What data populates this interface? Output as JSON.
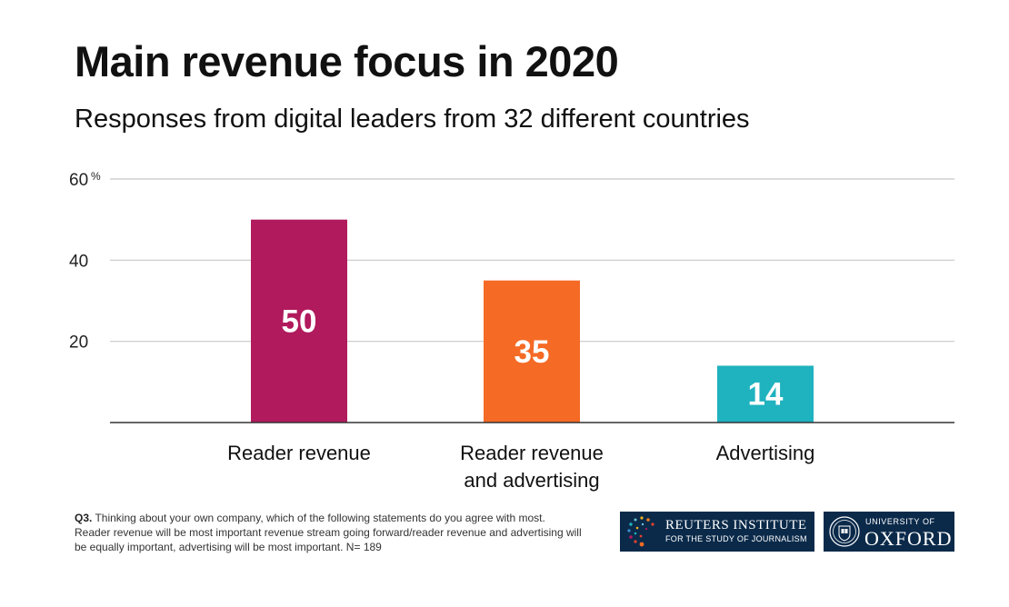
{
  "header": {
    "title": "Main revenue focus in 2020",
    "subtitle": "Responses from digital leaders from 32 different countries"
  },
  "chart_data": {
    "type": "bar",
    "title": "Main revenue focus in 2020",
    "subtitle": "Responses from digital leaders from 32 different countries",
    "categories": [
      "Reader revenue",
      "Reader revenue and advertising",
      "Advertising"
    ],
    "category_lines": [
      [
        "Reader revenue"
      ],
      [
        "Reader revenue",
        "and advertising"
      ],
      [
        "Advertising"
      ]
    ],
    "values": [
      50,
      35,
      14
    ],
    "data_labels": [
      "50",
      "35",
      "14"
    ],
    "colors": [
      "#b11a5d",
      "#f56a25",
      "#1fb2bf"
    ],
    "ylim": [
      0,
      60
    ],
    "yticks": [
      20,
      40,
      60
    ],
    "ytick_labels": [
      "20",
      "40",
      "60"
    ],
    "y_unit": "%",
    "xlabel": "",
    "ylabel": "",
    "grid": true,
    "legend": "none"
  },
  "footnote": {
    "label": "Q3.",
    "text": " Thinking about your own company, which of the following statements do you agree with most. Reader revenue will be most important revenue stream going forward/reader revenue and advertising will be equally important, advertising will be most important. N= 189"
  },
  "logos": {
    "reuters_main": "REUTERS INSTITUTE",
    "reuters_sub": "FOR THE STUDY OF JOURNALISM",
    "oxford_top": "UNIVERSITY OF",
    "oxford_main": "OXFORD"
  }
}
